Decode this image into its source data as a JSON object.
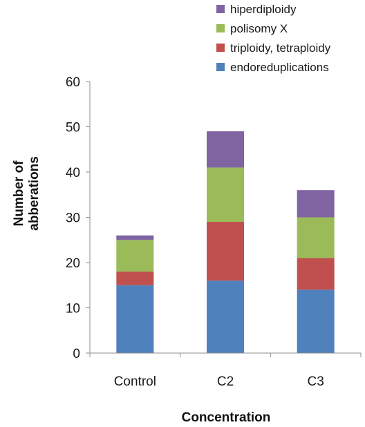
{
  "chart_data": {
    "type": "bar",
    "stacked": true,
    "categories": [
      "Control",
      "C2",
      "C3"
    ],
    "series": [
      {
        "name": "endoreduplications",
        "color": "#4F81BD",
        "values": [
          15,
          16,
          14
        ]
      },
      {
        "name": "triploidy, tetraploidy",
        "color": "#C0504D",
        "values": [
          3,
          13,
          7
        ]
      },
      {
        "name": "polisomy X",
        "color": "#9BBB59",
        "values": [
          7,
          12,
          9
        ]
      },
      {
        "name": "hiperdiploidy",
        "color": "#8064A2",
        "values": [
          1,
          8,
          6
        ]
      }
    ],
    "title": "",
    "xlabel": "Concentration",
    "ylabel_lines": [
      "Number of",
      "abberations"
    ],
    "ylim": [
      0,
      60
    ],
    "yticks": [
      0,
      10,
      20,
      30,
      40,
      50,
      60
    ],
    "grid": false,
    "legend_position": "top-right"
  }
}
